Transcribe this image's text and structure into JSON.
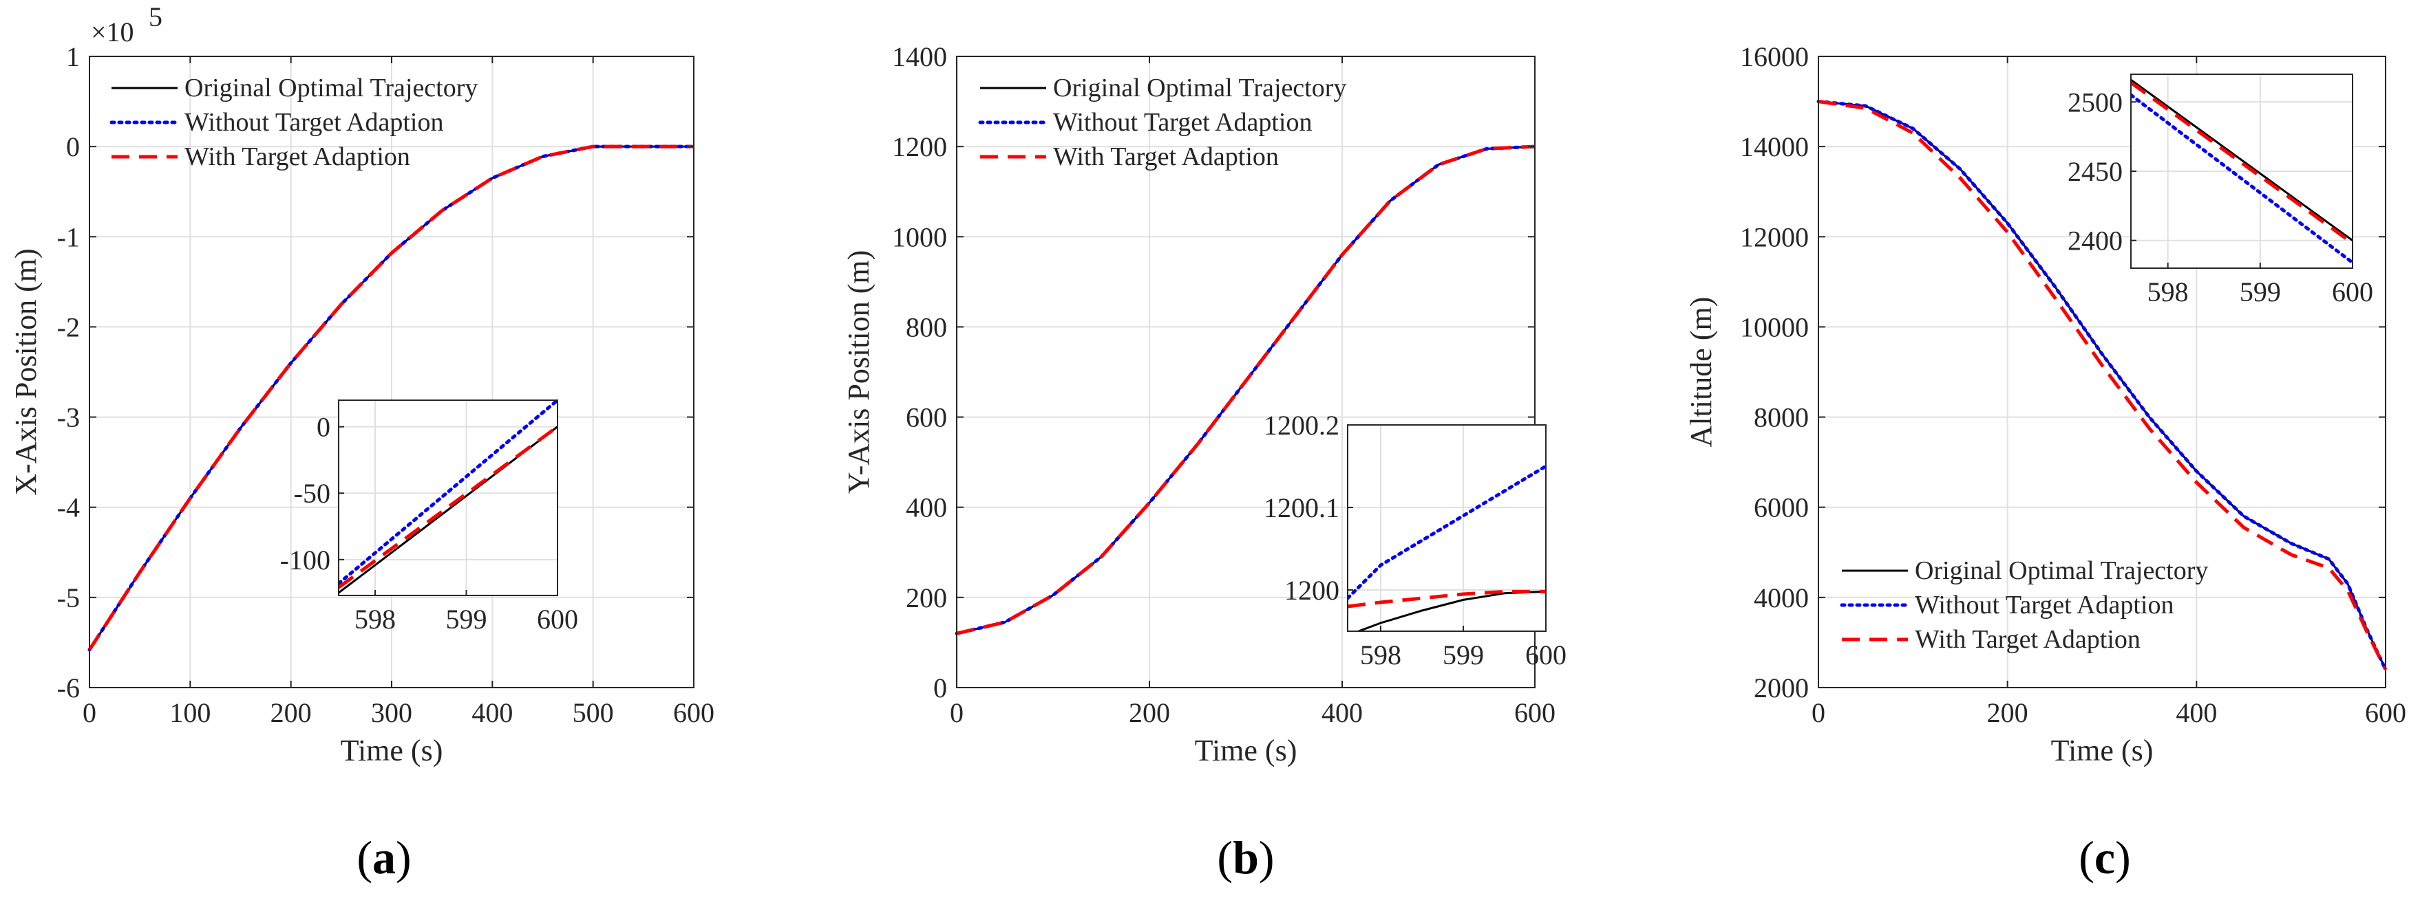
{
  "colors": {
    "original": "#000000",
    "without": "#0000ff",
    "with": "#ff0000"
  },
  "legend": [
    "Original Optimal Trajectory",
    "Without Target Adaption",
    "With Target Adaption"
  ],
  "chart_data": [
    {
      "type": "line",
      "panel_label": "a",
      "xlabel": "Time (s)",
      "ylabel": "X-Axis Position (m)",
      "exponent_label": "×10",
      "exponent_power": "5",
      "xlim": [
        0,
        600
      ],
      "ylim": [
        -6,
        1
      ],
      "xticks": [
        0,
        100,
        200,
        300,
        400,
        500,
        600
      ],
      "yticks": [
        -6,
        -5,
        -4,
        -3,
        -2,
        -1,
        0,
        1
      ],
      "legend_position": "top-left",
      "series": [
        {
          "name": "Original Optimal Trajectory",
          "x": [
            0,
            50,
            100,
            150,
            200,
            250,
            300,
            350,
            400,
            450,
            500,
            550,
            600
          ],
          "y": [
            -5.58,
            -4.72,
            -3.9,
            -3.12,
            -2.4,
            -1.75,
            -1.18,
            -0.71,
            -0.35,
            -0.11,
            0.0,
            0.0,
            0.0
          ]
        },
        {
          "name": "Without Target Adaption",
          "x": [
            0,
            50,
            100,
            150,
            200,
            250,
            300,
            350,
            400,
            450,
            500,
            550,
            600
          ],
          "y": [
            -5.58,
            -4.72,
            -3.9,
            -3.12,
            -2.4,
            -1.75,
            -1.18,
            -0.71,
            -0.35,
            -0.11,
            0.0,
            0.0,
            0.0
          ]
        },
        {
          "name": "With Target Adaption",
          "x": [
            0,
            50,
            100,
            150,
            200,
            250,
            300,
            350,
            400,
            450,
            500,
            550,
            600
          ],
          "y": [
            -5.58,
            -4.72,
            -3.9,
            -3.12,
            -2.4,
            -1.75,
            -1.18,
            -0.71,
            -0.35,
            -0.11,
            0.0,
            0.0,
            0.0
          ]
        }
      ],
      "inset": {
        "xlim": [
          597.6,
          600
        ],
        "ylim": [
          -127,
          20
        ],
        "xticks": [
          598,
          599,
          600
        ],
        "yticks": [
          0,
          -50,
          -100
        ],
        "series": [
          {
            "name": "Original Optimal Trajectory",
            "x": [
              597.6,
              600
            ],
            "y": [
              -125,
              0
            ]
          },
          {
            "name": "Without Target Adaption",
            "x": [
              597.6,
              600
            ],
            "y": [
              -118,
              20
            ]
          },
          {
            "name": "With Target Adaption",
            "x": [
              597.6,
              600
            ],
            "y": [
              -121,
              0
            ]
          }
        ]
      }
    },
    {
      "type": "line",
      "panel_label": "b",
      "xlabel": "Time (s)",
      "ylabel": "Y-Axis Position (m)",
      "xlim": [
        0,
        600
      ],
      "ylim": [
        0,
        1400
      ],
      "xticks": [
        0,
        200,
        400,
        600
      ],
      "yticks": [
        0,
        200,
        400,
        600,
        800,
        1000,
        1200,
        1400
      ],
      "legend_position": "top-left",
      "series": [
        {
          "name": "Original Optimal Trajectory",
          "x": [
            0,
            50,
            100,
            150,
            200,
            250,
            300,
            350,
            400,
            450,
            500,
            550,
            600
          ],
          "y": [
            120,
            145,
            205,
            290,
            410,
            540,
            680,
            820,
            960,
            1080,
            1160,
            1195,
            1200
          ]
        },
        {
          "name": "Without Target Adaption",
          "x": [
            0,
            50,
            100,
            150,
            200,
            250,
            300,
            350,
            400,
            450,
            500,
            550,
            600
          ],
          "y": [
            120,
            145,
            205,
            290,
            410,
            540,
            680,
            820,
            960,
            1080,
            1160,
            1195,
            1200
          ]
        },
        {
          "name": "With Target Adaption",
          "x": [
            0,
            50,
            100,
            150,
            200,
            250,
            300,
            350,
            400,
            450,
            500,
            550,
            600
          ],
          "y": [
            120,
            145,
            205,
            290,
            410,
            540,
            680,
            820,
            960,
            1080,
            1160,
            1195,
            1200
          ]
        }
      ],
      "inset": {
        "xlim": [
          597.6,
          600
        ],
        "ylim": [
          1199.95,
          1200.2
        ],
        "xticks": [
          598,
          599,
          600
        ],
        "yticks": [
          1200,
          1200.1,
          1200.2
        ],
        "ytick_labels": [
          "1200",
          "1200.1",
          "1200.2"
        ],
        "series": [
          {
            "name": "Original Optimal Trajectory",
            "x": [
              597.6,
              598,
              598.5,
              599,
              599.5,
              600
            ],
            "y": [
              1199.945,
              1199.96,
              1199.975,
              1199.988,
              1199.996,
              1199.998
            ]
          },
          {
            "name": "Without Target Adaption",
            "x": [
              597.6,
              598,
              598.5,
              599,
              599.5,
              600
            ],
            "y": [
              1199.99,
              1200.03,
              1200.06,
              1200.09,
              1200.12,
              1200.15
            ]
          },
          {
            "name": "With Target Adaption",
            "x": [
              597.6,
              598,
              598.5,
              599,
              599.5,
              600
            ],
            "y": [
              1199.98,
              1199.985,
              1199.99,
              1199.995,
              1199.998,
              1199.998
            ]
          }
        ]
      }
    },
    {
      "type": "line",
      "panel_label": "c",
      "xlabel": "Time (s)",
      "ylabel": "Altitude (m)",
      "xlim": [
        0,
        600
      ],
      "ylim": [
        2000,
        16000
      ],
      "xticks": [
        0,
        200,
        400,
        600
      ],
      "yticks": [
        2000,
        4000,
        6000,
        8000,
        10000,
        12000,
        14000,
        16000
      ],
      "legend_position": "bottom-left",
      "series": [
        {
          "name": "Original Optimal Trajectory",
          "x": [
            0,
            50,
            100,
            150,
            200,
            250,
            300,
            350,
            400,
            450,
            500,
            540,
            560,
            580,
            600
          ],
          "y": [
            15000,
            14900,
            14400,
            13500,
            12300,
            10900,
            9400,
            8000,
            6800,
            5800,
            5200,
            4850,
            4300,
            3300,
            2400
          ]
        },
        {
          "name": "Without Target Adaption",
          "x": [
            0,
            50,
            100,
            150,
            200,
            250,
            300,
            350,
            400,
            450,
            500,
            540,
            560,
            580,
            600
          ],
          "y": [
            15000,
            14900,
            14400,
            13500,
            12300,
            10900,
            9400,
            8000,
            6800,
            5800,
            5200,
            4850,
            4300,
            3300,
            2400
          ]
        },
        {
          "name": "With Target Adaption",
          "x": [
            0,
            50,
            100,
            150,
            200,
            250,
            300,
            350,
            400,
            450,
            500,
            540,
            560,
            580,
            600
          ],
          "y": [
            15000,
            14850,
            14300,
            13300,
            12100,
            10650,
            9150,
            7750,
            6550,
            5550,
            4950,
            4650,
            4150,
            3250,
            2400
          ]
        }
      ],
      "inset": {
        "xlim": [
          597.6,
          600
        ],
        "ylim": [
          2380,
          2520
        ],
        "xticks": [
          598,
          599,
          600
        ],
        "yticks": [
          2400,
          2450,
          2500
        ],
        "series": [
          {
            "name": "Original Optimal Trajectory",
            "x": [
              597.6,
              600
            ],
            "y": [
              2516,
              2400
            ]
          },
          {
            "name": "Without Target Adaption",
            "x": [
              597.6,
              600
            ],
            "y": [
              2505,
              2384
            ]
          },
          {
            "name": "With Target Adaption",
            "x": [
              597.6,
              600
            ],
            "y": [
              2514,
              2398
            ]
          }
        ]
      }
    }
  ]
}
